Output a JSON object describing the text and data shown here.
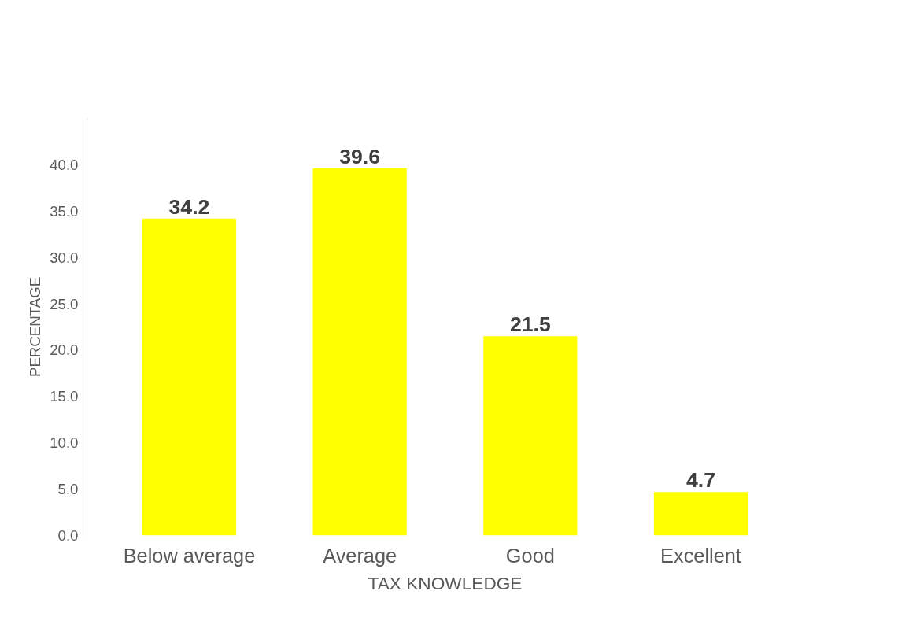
{
  "chart_data": {
    "type": "bar",
    "xlabel": "TAX KNOWLEDGE",
    "ylabel": "PERCENTAGE",
    "categories": [
      "Below average",
      "Average",
      "Good",
      "Excellent"
    ],
    "values": [
      34.2,
      39.6,
      21.5,
      4.7
    ],
    "color": "#ffff00",
    "data_labels": true,
    "grid": false,
    "ylim": [
      0,
      45
    ],
    "yticks": [
      {
        "value": 0,
        "label": "0.0"
      },
      {
        "value": 5,
        "label": "5.0"
      },
      {
        "value": 10,
        "label": "10.0"
      },
      {
        "value": 15,
        "label": "15.0"
      },
      {
        "value": 20,
        "label": "20.0"
      },
      {
        "value": 25,
        "label": "25.0"
      },
      {
        "value": 30,
        "label": "30.0"
      },
      {
        "value": 35,
        "label": "35.0"
      },
      {
        "value": 40,
        "label": "40.0"
      }
    ]
  }
}
